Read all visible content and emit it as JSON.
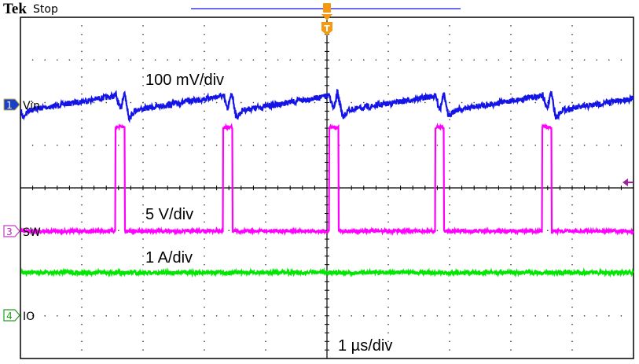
{
  "header": {
    "brand": "Tek",
    "status": "Stop"
  },
  "trigger": {
    "label": "T",
    "color": "#f39a12"
  },
  "chart_data": {
    "type": "line",
    "title": "",
    "x_axis": {
      "unit": "µs",
      "range": [
        -5,
        5
      ],
      "divisions": 10,
      "scale_label": "1 µs/div"
    },
    "y_axis": {
      "divisions": 8
    },
    "grid": true,
    "pulse_starts_us": [
      -3.45,
      -1.7,
      0.03,
      1.76,
      3.51
    ],
    "pulse_width_us": 0.15,
    "series": [
      {
        "channel": "1",
        "name": "Vin",
        "color": "#1414e6",
        "scale_label": "100 mV/div",
        "unit": "mV",
        "pre_pulse_peak": 24,
        "spike_high": 31,
        "dip_min": -31,
        "ramp_start": -13,
        "ramp_end": 20
      },
      {
        "channel": "3",
        "name": "SW",
        "color": "#ff00ff",
        "scale_label": "5 V/div",
        "unit": "V",
        "low": 0,
        "high": 12.2
      },
      {
        "channel": "4",
        "name": "IO",
        "color": "#00e600",
        "scale_label": "1 A/div",
        "unit": "A",
        "level": 1.0
      }
    ]
  }
}
